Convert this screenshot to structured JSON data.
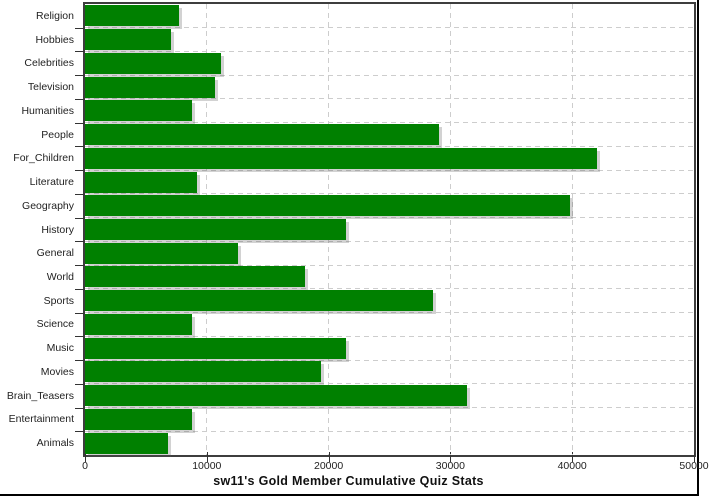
{
  "chart_data": {
    "type": "bar",
    "orientation": "horizontal",
    "title": "sw11's Gold Member Cumulative Quiz Stats",
    "categories": [
      "Religion",
      "Hobbies",
      "Celebrities",
      "Television",
      "Humanities",
      "People",
      "For_Children",
      "Literature",
      "Geography",
      "History",
      "General",
      "World",
      "Sports",
      "Science",
      "Music",
      "Movies",
      "Brain_Teasers",
      "Entertainment",
      "Animals"
    ],
    "values": [
      7700,
      7100,
      11200,
      10700,
      8800,
      29100,
      42000,
      9200,
      39800,
      21400,
      12600,
      18100,
      28600,
      8800,
      21400,
      19400,
      31400,
      8800,
      6800
    ],
    "xlim": [
      0,
      50000
    ],
    "xticks": [
      0,
      10000,
      20000,
      30000,
      40000,
      50000
    ],
    "xtick_labels": [
      "0",
      "10000",
      "20000",
      "30000",
      "40000",
      "50000"
    ],
    "xlabel": "",
    "ylabel": "",
    "grid": "dashed",
    "legend": "none",
    "colors": {
      "bar": "#008000",
      "grid": "#cdcdcd",
      "axis_border": "#3d3d3d",
      "tick": "#333333",
      "text": "#222222",
      "frame": "#000000",
      "background": "#ffffff"
    }
  }
}
